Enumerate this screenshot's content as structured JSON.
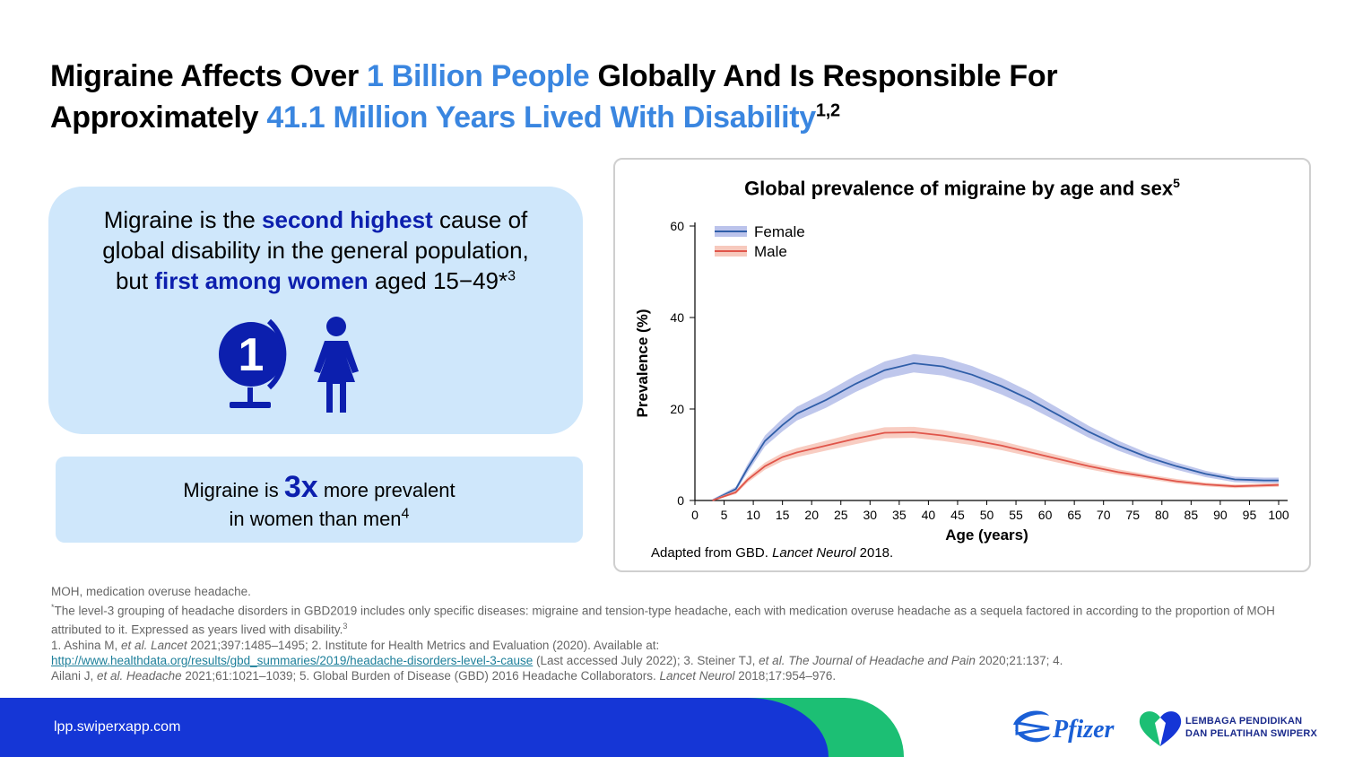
{
  "header": {
    "title_part1": "Migraine Affects Over ",
    "title_hl1": "1 Billion People",
    "title_part2": " Globally And Is Responsible For",
    "title_part3": "Approximately ",
    "title_hl2": "41.1 Million Years Lived With Disability",
    "title_sup": "1,2"
  },
  "box1": {
    "line1_a": "Migraine is the ",
    "line1_b": "second highest",
    "line1_c": " cause of",
    "line2": "global disability in the general population,",
    "line3_a": "but ",
    "line3_b": "first among women",
    "line3_c": " aged 15−49*",
    "line3_sup": "3",
    "icon_number": "1"
  },
  "box2": {
    "text_a": "Migraine is ",
    "big": "3x",
    "text_b": " more prevalent",
    "line2": "in women than men",
    "sup": "4"
  },
  "chart": {
    "title": "Global prevalence of migraine by age and sex",
    "title_sup": "5",
    "source_a": "Adapted from GBD. ",
    "source_i": "Lancet Neurol",
    "source_b": " 2018."
  },
  "chart_data": {
    "type": "line",
    "title": "Global prevalence of migraine by age and sex",
    "xlabel": "Age (years)",
    "ylabel": "Prevalence (%)",
    "xlim": [
      0,
      100
    ],
    "ylim": [
      0,
      60
    ],
    "xticks": [
      0,
      5,
      10,
      15,
      20,
      25,
      30,
      35,
      40,
      45,
      50,
      55,
      60,
      65,
      70,
      75,
      80,
      85,
      90,
      95,
      100
    ],
    "yticks": [
      0,
      20,
      40,
      60
    ],
    "legend_position": "top-left",
    "grid": false,
    "series": [
      {
        "name": "Female",
        "color": "#2f5ea8",
        "band_color": "#aab4e6",
        "x": [
          3,
          7,
          9,
          12,
          15,
          17.5,
          22.5,
          27.5,
          32.5,
          37.5,
          42.5,
          47.5,
          52.5,
          57.5,
          62.5,
          67.5,
          72.5,
          77.5,
          82.5,
          87.5,
          92.5,
          97.5,
          100
        ],
        "y": [
          0,
          2.5,
          7,
          13,
          16.5,
          19,
          22,
          25.5,
          28.5,
          30,
          29.3,
          27.5,
          25,
          22,
          18.5,
          15,
          12,
          9.5,
          7.5,
          5.8,
          4.6,
          4.4,
          4.4
        ],
        "band": [
          0.3,
          0.5,
          0.9,
          1.2,
          1.4,
          1.5,
          1.7,
          1.8,
          1.9,
          2.0,
          2.0,
          1.9,
          1.8,
          1.7,
          1.5,
          1.3,
          1.1,
          0.9,
          0.8,
          0.7,
          0.6,
          0.6,
          0.6
        ]
      },
      {
        "name": "Male",
        "color": "#e0554a",
        "band_color": "#f5bcad",
        "x": [
          3,
          7,
          9,
          12,
          15,
          17.5,
          22.5,
          27.5,
          32.5,
          37.5,
          42.5,
          47.5,
          52.5,
          57.5,
          62.5,
          67.5,
          72.5,
          77.5,
          82.5,
          87.5,
          92.5,
          97.5,
          100
        ],
        "y": [
          0,
          1.8,
          4.5,
          7.5,
          9.5,
          10.5,
          12,
          13.5,
          14.8,
          14.9,
          14.2,
          13.2,
          12,
          10.5,
          9,
          7.5,
          6.2,
          5.2,
          4.2,
          3.5,
          3.1,
          3.3,
          3.4
        ],
        "band": [
          0.2,
          0.4,
          0.6,
          0.8,
          0.9,
          1.0,
          1.1,
          1.2,
          1.2,
          1.2,
          1.2,
          1.1,
          1.0,
          0.9,
          0.8,
          0.7,
          0.6,
          0.5,
          0.5,
          0.4,
          0.4,
          0.4,
          0.4
        ]
      }
    ]
  },
  "footnotes": {
    "abbrev": "MOH, medication overuse headache.",
    "star_mark": "*",
    "star_note": "The level-3 grouping of headache disorders in GBD2019 includes only specific diseases: migraine and tension-type headache, each with medication overuse headache as a sequela factored in according to the proportion of MOH attributed to it. Expressed as years lived with disability.",
    "star_sup": "3",
    "ref1_a": "1. Ashina M, ",
    "ref1_i1": "et al. Lancet",
    "ref1_b": " 2021;397:1485–1495; 2. Institute for Health Metrics and Evaluation (2020). Available at:",
    "ref_link": "http://www.healthdata.org/results/gbd_summaries/2019/headache-disorders-level-3-cause",
    "ref2_a": " (Last accessed July 2022); 3. Steiner TJ, ",
    "ref2_i1": "et al. The Journal of Headache and Pain",
    "ref2_b": " 2020;21:137; 4.",
    "ref3_a": "Ailani J, ",
    "ref3_i1": "et al. Headache",
    "ref3_b": " 2021;61:1021–1039; 5. Global Burden of Disease (GBD) 2016 Headache Collaborators. ",
    "ref3_i2": "Lancet Neurol",
    "ref3_c": " 2018;17:954–976."
  },
  "footer": {
    "url": "lpp.swiperxapp.com",
    "pfizer_logo": "Pfizer",
    "lpp_line1": "LEMBAGA PENDIDIKAN",
    "lpp_line2": "DAN PELATIHAN SWIPERX",
    "colors": {
      "blue": "#1536d6",
      "green": "#1cbf74"
    }
  }
}
